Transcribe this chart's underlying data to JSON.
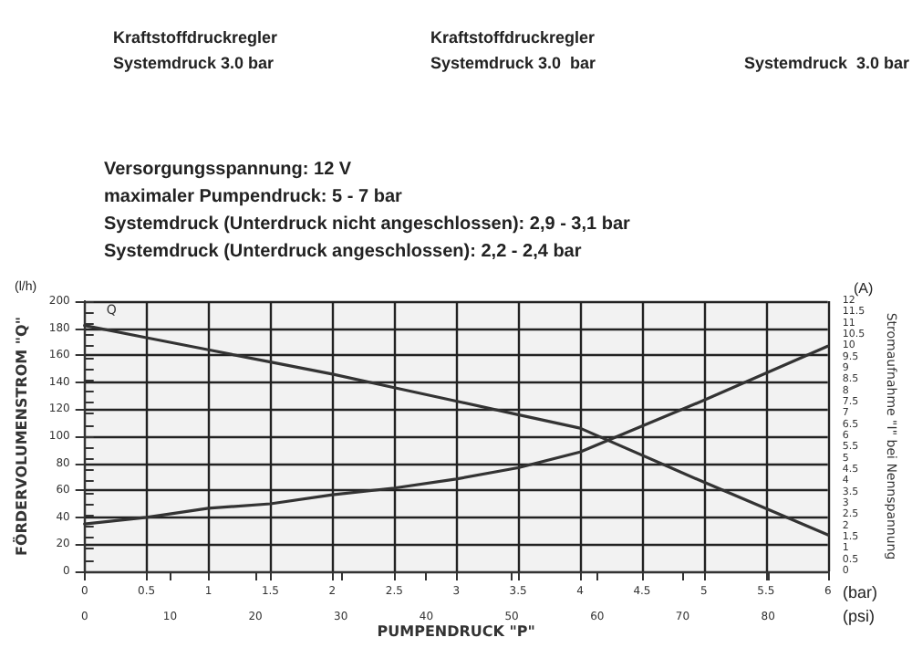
{
  "chart_data": {
    "type": "line",
    "xlabel": "PUMPENDRUCK \"P\"",
    "ylabel": "FÖRDERVOLUMENSTROM \"Q\"",
    "y2label": "Stromaufnahme \"I\" bei Nennspannung",
    "annotations": [
      "Kraftstoffdruckregler",
      "Systemdruck 3.0 bar",
      "Kraftstoffdruckregler",
      "Systemdruck 3.0  bar",
      "Systemdruck  3.0 bar",
      "Versorgungsspannung: 12 V",
      "maximaler Pumpendruck: 5 - 7 bar",
      "Systemdruck (Unterdruck nicht angeschlossen): 2,9 - 3,1 bar",
      "Systemdruck (Unterdruck angeschlossen): 2,2 - 2,4 bar",
      "(l/h)",
      "(A)",
      "(bar)",
      "(psi)"
    ],
    "x": [
      0,
      0.5,
      1,
      1.5,
      2,
      2.5,
      3,
      3.5,
      4,
      5,
      6
    ],
    "series": [
      {
        "name": "Q",
        "color": "#333333",
        "values": [
          182,
          173,
          164,
          155,
          146,
          136,
          126,
          116,
          106,
          66,
          27
        ]
      },
      {
        "color": "#333333",
        "axis": "y2",
        "values": [
          2.1,
          2.4,
          2.8,
          3.0,
          3.4,
          3.7,
          4.1,
          4.6,
          5.3,
          7.6,
          10
        ]
      }
    ],
    "xlim": [
      0,
      6
    ],
    "xticks": [
      0,
      0.5,
      1,
      1.5,
      2,
      2.5,
      3,
      3.5,
      4,
      4.5,
      5,
      5.5,
      6
    ],
    "x2lim": [
      0,
      87
    ],
    "x2ticks": [
      0,
      10,
      20,
      30,
      40,
      50,
      60,
      70,
      80
    ],
    "ylim": [
      0,
      200
    ],
    "yticks": [
      0,
      20,
      40,
      60,
      80,
      100,
      120,
      140,
      160,
      180,
      200
    ],
    "y2lim": [
      0,
      12
    ],
    "y2ticks": [
      0,
      0.5,
      1,
      1.5,
      2,
      2.5,
      3,
      3.5,
      4,
      4.5,
      5,
      5.5,
      6,
      6.5,
      7,
      7.5,
      8,
      8.5,
      9,
      9.5,
      10,
      10.5,
      11,
      11.5,
      12
    ],
    "grid": true,
    "marker": "none",
    "line_style": "solid"
  }
}
